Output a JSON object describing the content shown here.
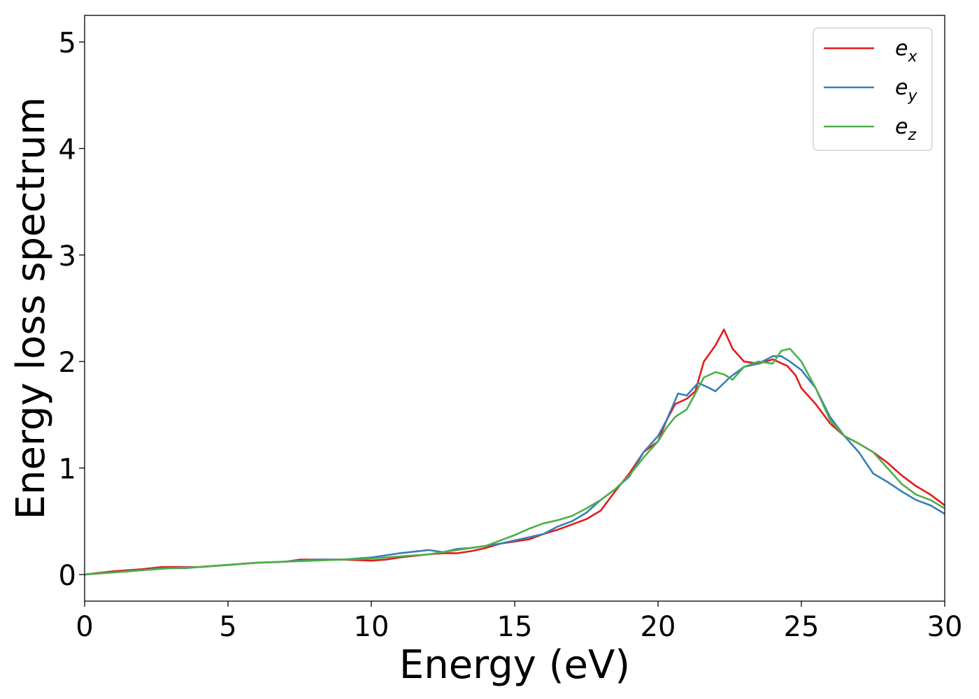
{
  "chart_data": {
    "type": "line",
    "title": "",
    "xlabel": "Energy (eV)",
    "ylabel": "Energy loss spectrum",
    "xlim": [
      0,
      30
    ],
    "ylim": [
      -0.25,
      5.25
    ],
    "xticks": [
      0,
      5,
      10,
      15,
      20,
      25,
      30
    ],
    "xtick_labels": [
      "0",
      "5",
      "10",
      "15",
      "20",
      "25",
      "30"
    ],
    "yticks": [
      0,
      1,
      2,
      3,
      4,
      5
    ],
    "ytick_labels": [
      "0",
      "1",
      "2",
      "3",
      "4",
      "5"
    ],
    "grid": false,
    "legend": "top-right",
    "series": [
      {
        "name": "e_x",
        "label_base": "e",
        "label_sub": "x",
        "color": "#e41a1c",
        "x": [
          0,
          1,
          2,
          2.7,
          3.5,
          4,
          5,
          6,
          7,
          7.5,
          8,
          9,
          10,
          10.5,
          11,
          12,
          12.5,
          13,
          13.5,
          14,
          14.5,
          15,
          15.5,
          16,
          16.5,
          17,
          17.5,
          18,
          18.5,
          19,
          19.5,
          20,
          20.3,
          20.6,
          21,
          21.3,
          21.6,
          22,
          22.3,
          22.6,
          23,
          23.5,
          24,
          24.5,
          24.8,
          25,
          25.5,
          26,
          26.5,
          27,
          27.5,
          28,
          28.5,
          29,
          29.5,
          30
        ],
        "y": [
          0,
          0.03,
          0.05,
          0.07,
          0.07,
          0.07,
          0.09,
          0.11,
          0.12,
          0.14,
          0.14,
          0.14,
          0.13,
          0.14,
          0.16,
          0.19,
          0.2,
          0.2,
          0.22,
          0.25,
          0.29,
          0.31,
          0.33,
          0.38,
          0.42,
          0.47,
          0.52,
          0.6,
          0.78,
          0.95,
          1.15,
          1.25,
          1.45,
          1.6,
          1.65,
          1.72,
          2.0,
          2.15,
          2.3,
          2.12,
          2.0,
          1.98,
          2.02,
          1.96,
          1.87,
          1.75,
          1.6,
          1.42,
          1.3,
          1.23,
          1.15,
          1.05,
          0.93,
          0.83,
          0.75,
          0.65
        ]
      },
      {
        "name": "e_y",
        "label_base": "e",
        "label_sub": "y",
        "color": "#377eb8",
        "x": [
          0,
          1,
          2,
          2.7,
          3.5,
          4,
          5,
          6,
          7,
          7.5,
          8,
          9,
          10,
          10.5,
          11,
          12,
          12.5,
          13,
          13.5,
          14,
          14.5,
          15,
          15.5,
          16,
          16.5,
          17,
          17.5,
          18,
          18.5,
          19,
          19.5,
          20,
          20.3,
          20.7,
          21,
          21.4,
          21.8,
          22,
          22.5,
          23,
          23.5,
          24,
          24.3,
          24.6,
          25,
          25.5,
          26,
          26.5,
          27,
          27.5,
          28,
          28.5,
          29,
          29.5,
          30
        ],
        "y": [
          0,
          0.02,
          0.04,
          0.06,
          0.06,
          0.07,
          0.09,
          0.11,
          0.12,
          0.13,
          0.14,
          0.14,
          0.16,
          0.18,
          0.2,
          0.23,
          0.21,
          0.24,
          0.25,
          0.27,
          0.29,
          0.32,
          0.35,
          0.38,
          0.45,
          0.5,
          0.58,
          0.7,
          0.8,
          0.92,
          1.15,
          1.3,
          1.45,
          1.7,
          1.68,
          1.8,
          1.75,
          1.72,
          1.85,
          1.95,
          1.98,
          2.05,
          2.05,
          2.0,
          1.92,
          1.75,
          1.48,
          1.3,
          1.15,
          0.95,
          0.87,
          0.78,
          0.7,
          0.65,
          0.57
        ]
      },
      {
        "name": "e_z",
        "label_base": "e",
        "label_sub": "z",
        "color": "#4daf4a",
        "x": [
          0,
          1,
          2,
          3,
          4,
          5,
          6,
          7,
          8,
          9,
          10,
          11,
          12,
          12.5,
          13,
          14,
          14.5,
          15,
          15.5,
          16,
          16.5,
          17,
          17.5,
          18,
          18.5,
          19,
          19.5,
          20,
          20.3,
          20.6,
          21,
          21.3,
          21.6,
          22,
          22.3,
          22.6,
          23,
          23.5,
          24,
          24.3,
          24.6,
          25,
          25.5,
          26,
          26.5,
          27,
          27.5,
          28,
          28.5,
          29,
          29.5,
          30
        ],
        "y": [
          0,
          0.02,
          0.04,
          0.06,
          0.07,
          0.09,
          0.11,
          0.12,
          0.13,
          0.14,
          0.15,
          0.17,
          0.19,
          0.21,
          0.23,
          0.27,
          0.32,
          0.37,
          0.43,
          0.48,
          0.51,
          0.55,
          0.62,
          0.7,
          0.8,
          0.93,
          1.1,
          1.25,
          1.38,
          1.48,
          1.55,
          1.7,
          1.85,
          1.9,
          1.88,
          1.83,
          1.95,
          2.0,
          1.98,
          2.1,
          2.12,
          2.0,
          1.75,
          1.45,
          1.3,
          1.23,
          1.15,
          1.0,
          0.85,
          0.75,
          0.7,
          0.62
        ]
      }
    ]
  }
}
